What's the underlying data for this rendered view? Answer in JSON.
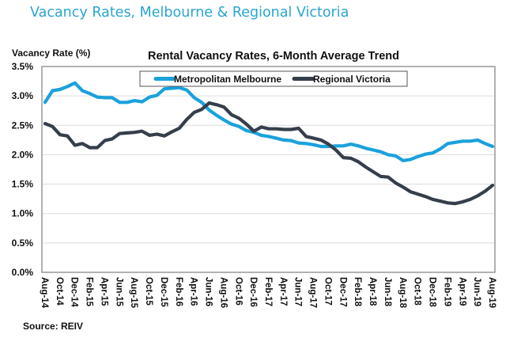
{
  "page": {
    "title": "Vacancy Rates, Melbourne & Regional Victoria",
    "source": "Source:  REIV"
  },
  "colors": {
    "title": "#2aa5cf",
    "metro": "#1ba1dc",
    "regional": "#353e4a",
    "grid": "#dcdcdc",
    "axis": "#888888"
  },
  "chart_data": {
    "type": "line",
    "title": "Rental Vacancy Rates, 6-Month Average Trend",
    "ylabel": "Vacancy Rate (%)",
    "xlabel": "",
    "ylim": [
      0,
      3.5
    ],
    "yticks": [
      0,
      0.5,
      1.0,
      1.5,
      2.0,
      2.5,
      3.0,
      3.5
    ],
    "ytick_labels": [
      "0.0%",
      "0.5%",
      "1.0%",
      "1.5%",
      "2.0%",
      "2.5%",
      "3.0%",
      "3.5%"
    ],
    "grid": true,
    "legend_position": "top-center",
    "xtick_labels": [
      "Aug-14",
      "Oct-14",
      "Dec-14",
      "Feb-15",
      "Apr-15",
      "Jun-15",
      "Aug-15",
      "Oct-15",
      "Dec-15",
      "Feb-16",
      "Apr-16",
      "Jun-16",
      "Aug-16",
      "Oct-16",
      "Dec-16",
      "Feb-17",
      "Apr-17",
      "Jun-17",
      "Aug-17",
      "Oct-17",
      "Dec-17",
      "Feb-18",
      "Apr-18",
      "Jun-18",
      "Aug-18",
      "Oct-18",
      "Dec-18",
      "Feb-19",
      "Apr-19",
      "Jun-19",
      "Aug-19"
    ],
    "x_months": 61,
    "series": [
      {
        "name": "Metropolitan Melbourne",
        "color": "#1ba1dc",
        "values": [
          2.89,
          3.09,
          3.11,
          3.16,
          3.22,
          3.09,
          3.04,
          2.98,
          2.97,
          2.97,
          2.89,
          2.89,
          2.92,
          2.9,
          2.98,
          3.01,
          3.12,
          3.13,
          3.14,
          3.1,
          2.97,
          2.89,
          2.76,
          2.67,
          2.59,
          2.52,
          2.48,
          2.41,
          2.38,
          2.33,
          2.31,
          2.28,
          2.25,
          2.24,
          2.2,
          2.19,
          2.17,
          2.14,
          2.14,
          2.15,
          2.15,
          2.18,
          2.15,
          2.11,
          2.08,
          2.05,
          2.0,
          1.98,
          1.9,
          1.92,
          1.97,
          2.01,
          2.03,
          2.1,
          2.19,
          2.21,
          2.23,
          2.23,
          2.25,
          2.19,
          2.14
        ],
        "values_end_note": ""
      },
      {
        "name": "Regional Victoria",
        "color": "#353e4a",
        "values": [
          2.53,
          2.48,
          2.34,
          2.32,
          2.16,
          2.19,
          2.12,
          2.12,
          2.24,
          2.27,
          2.36,
          2.37,
          2.38,
          2.4,
          2.33,
          2.35,
          2.32,
          2.39,
          2.45,
          2.6,
          2.72,
          2.77,
          2.88,
          2.85,
          2.81,
          2.68,
          2.62,
          2.52,
          2.4,
          2.47,
          2.44,
          2.44,
          2.43,
          2.43,
          2.45,
          2.31,
          2.28,
          2.25,
          2.18,
          2.08,
          1.95,
          1.94,
          1.88,
          1.79,
          1.71,
          1.63,
          1.62,
          1.52,
          1.45,
          1.37,
          1.33,
          1.29,
          1.24,
          1.21,
          1.18,
          1.17,
          1.2,
          1.24,
          1.3,
          1.38,
          1.48
        ]
      }
    ]
  }
}
